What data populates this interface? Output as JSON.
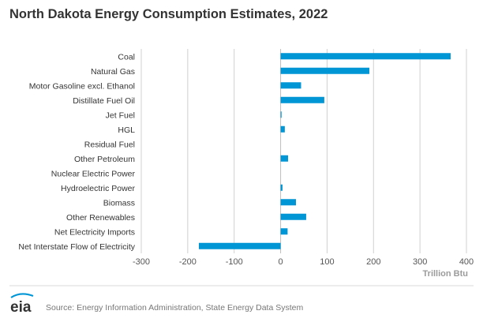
{
  "chart_data": {
    "type": "bar",
    "orientation": "horizontal",
    "title": "North Dakota Energy Consumption Estimates, 2022",
    "categories": [
      "Coal",
      "Natural Gas",
      "Motor Gasoline excl. Ethanol",
      "Distillate Fuel Oil",
      "Jet Fuel",
      "HGL",
      "Residual Fuel",
      "Other Petroleum",
      "Nuclear Electric Power",
      "Hydroelectric Power",
      "Biomass",
      "Other Renewables",
      "Net Electricity Imports",
      "Net Interstate Flow of Electricity"
    ],
    "values": [
      366,
      191,
      44,
      94,
      2,
      9,
      0,
      16,
      0,
      4,
      33,
      55,
      15,
      -176
    ],
    "xlabel": "Trillion Btu",
    "ylabel": "",
    "xlim": [
      -300,
      400
    ],
    "xticks": [
      -300,
      -200,
      -100,
      0,
      100,
      200,
      300,
      400
    ],
    "grid": true,
    "bar_color": "#0096D6"
  },
  "footer": {
    "source": "Source: Energy Information Administration, State Energy Data System",
    "logo_text": "eia"
  }
}
